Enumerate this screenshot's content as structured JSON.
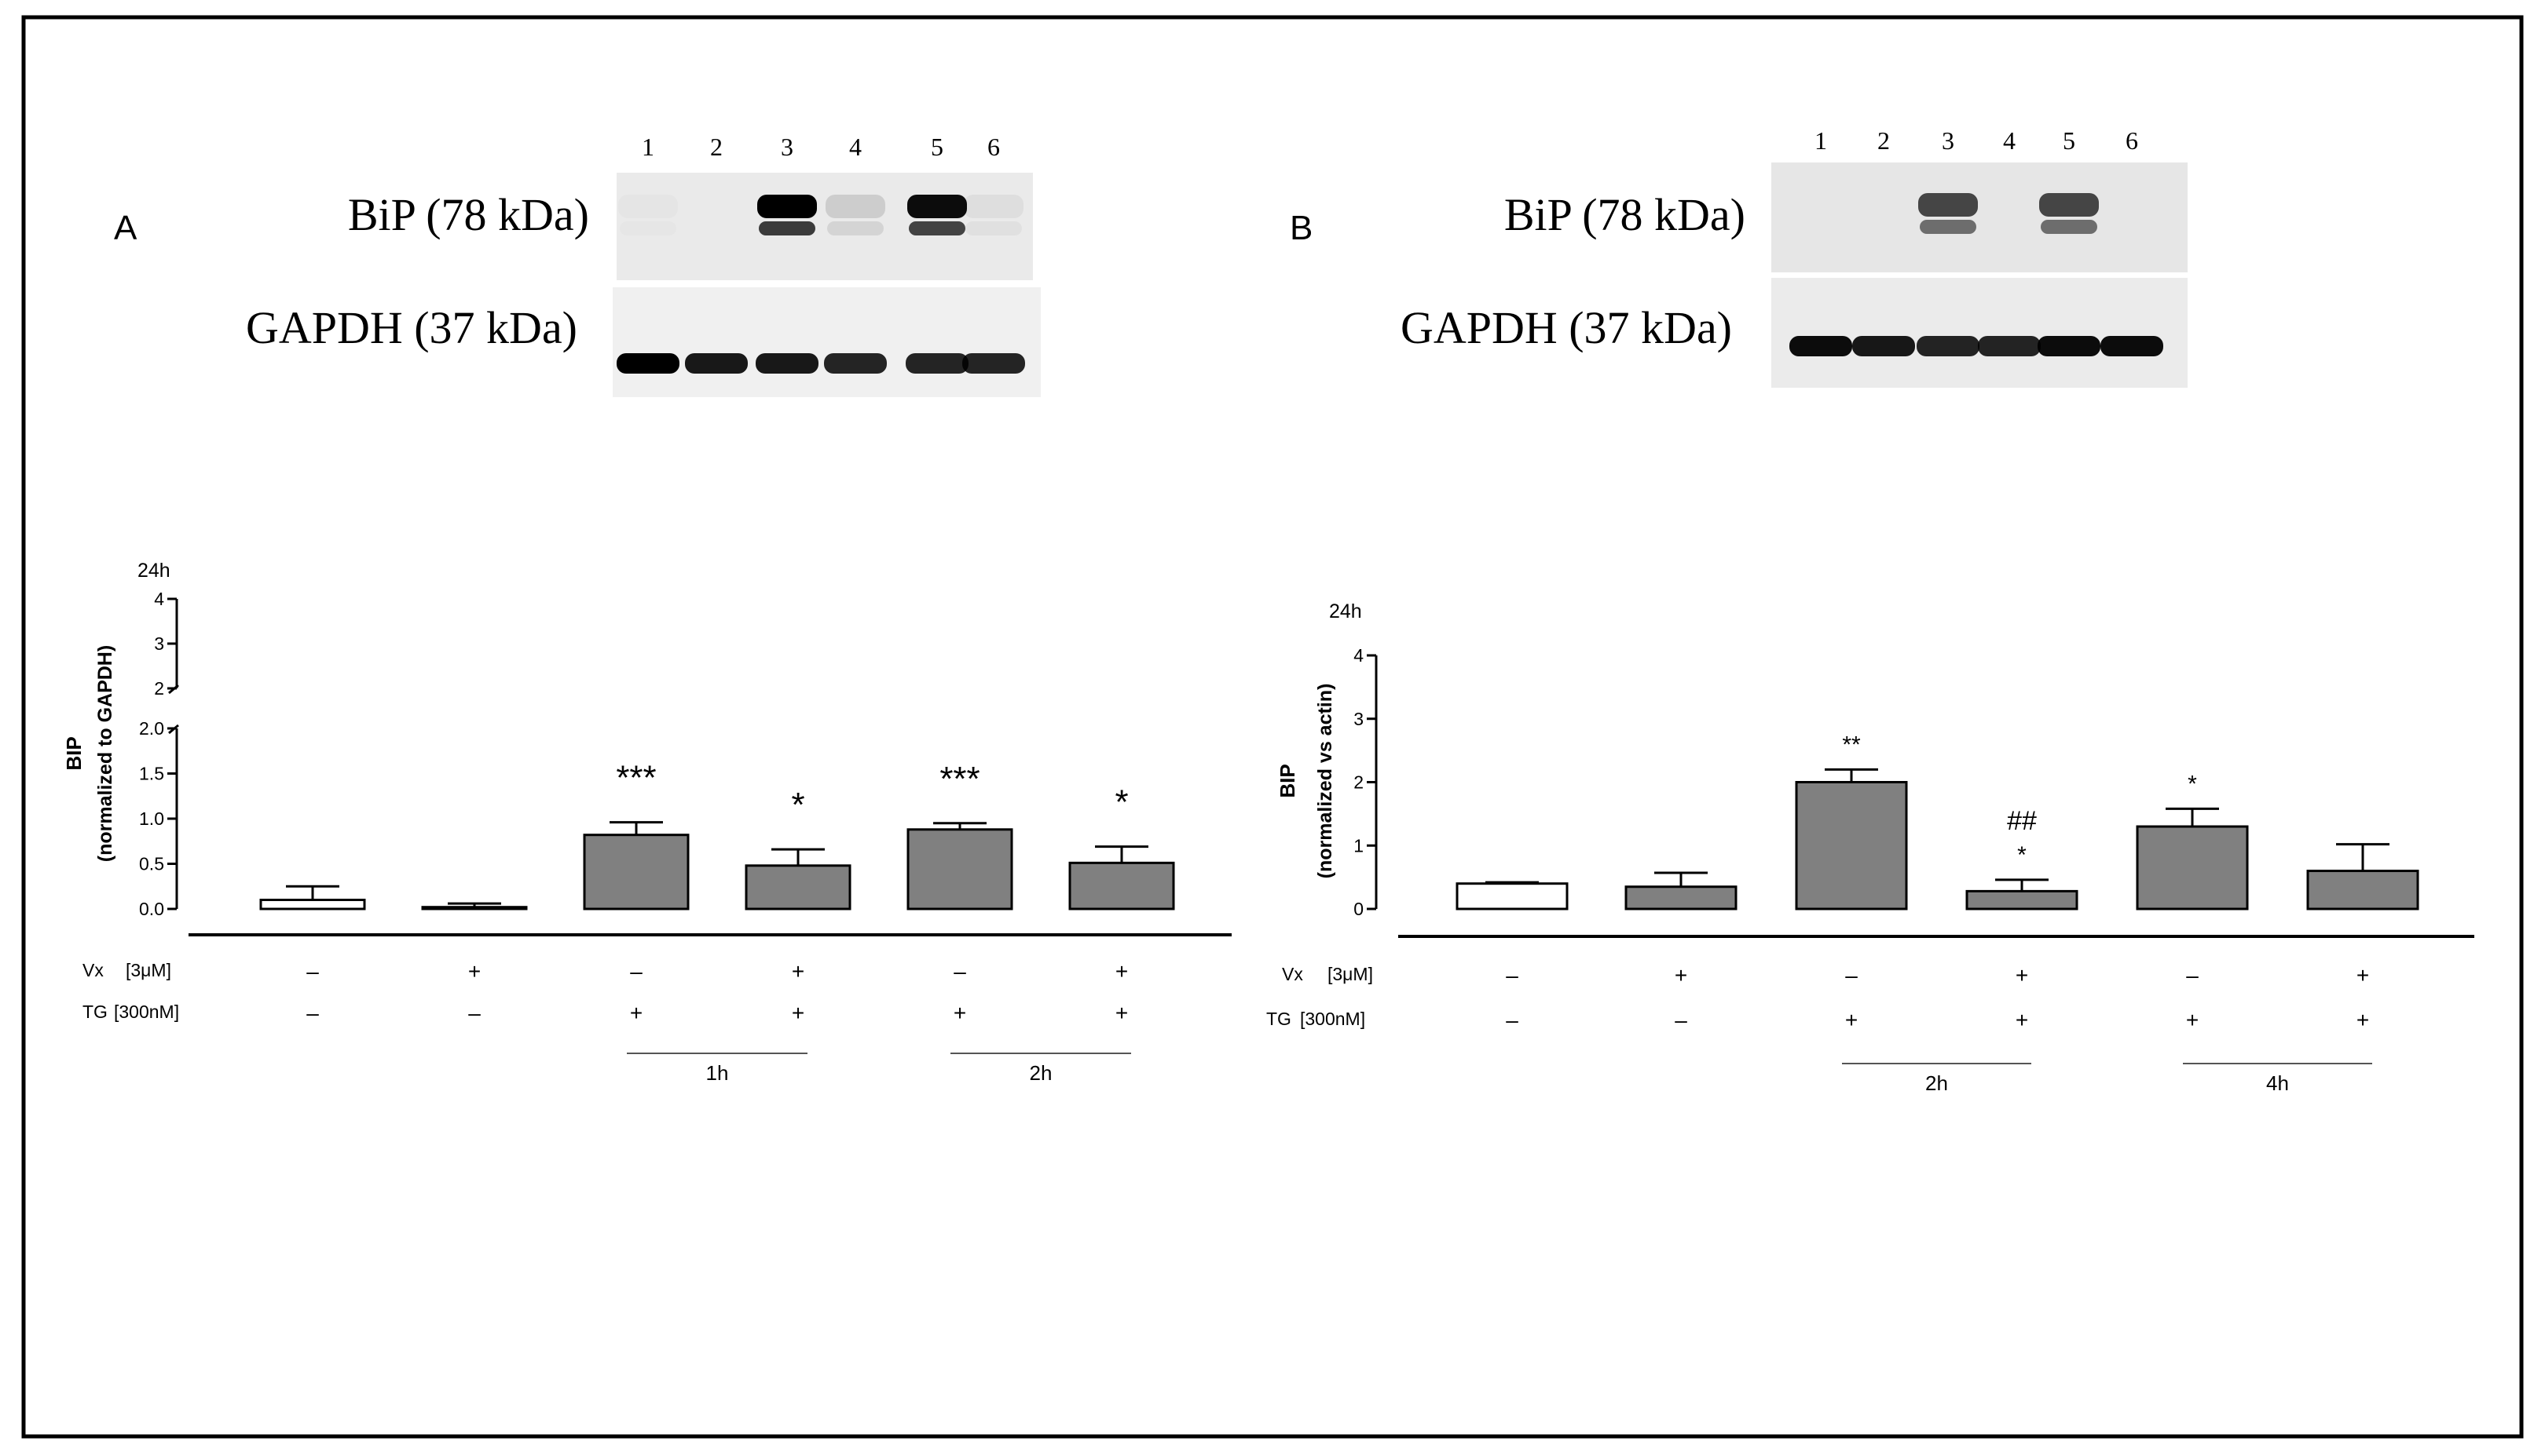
{
  "panels": [
    {
      "letter": "A",
      "blot": {
        "lane_numbers": [
          "1",
          "2",
          "3",
          "4",
          "5",
          "6"
        ],
        "row_labels": [
          "BiP (78 kDa)",
          "GAPDH (37 kDa)"
        ],
        "bip_intensity": [
          0.02,
          0.0,
          1.0,
          0.12,
          0.95,
          0.05
        ],
        "gapdh_intensity": [
          1.0,
          0.9,
          0.9,
          0.85,
          0.85,
          0.85
        ]
      },
      "timepoint": "24h",
      "conditions": {
        "vx_label": "Vx",
        "vx_conc": "[3μM]",
        "tg_label": "TG",
        "tg_conc": "[300nM]",
        "vx_signs": [
          "–",
          "+",
          "–",
          "+",
          "–",
          "+"
        ],
        "tg_signs": [
          "–",
          "–",
          "+",
          "+",
          "+",
          "+"
        ],
        "groups": [
          {
            "label": "1h",
            "bars": [
              2,
              3
            ]
          },
          {
            "label": "2h",
            "bars": [
              4,
              5
            ]
          }
        ]
      }
    },
    {
      "letter": "B",
      "blot": {
        "lane_numbers": [
          "1",
          "2",
          "3",
          "4",
          "5",
          "6"
        ],
        "row_labels": [
          "BiP (78 kDa)",
          "GAPDH (37 kDa)"
        ],
        "bip_intensity": [
          0.0,
          0.0,
          0.7,
          0.0,
          0.7,
          0.0
        ],
        "gapdh_intensity": [
          0.95,
          0.9,
          0.85,
          0.85,
          0.95,
          0.95
        ]
      },
      "timepoint": "24h",
      "conditions": {
        "vx_label": "Vx",
        "vx_conc": "[3μM]",
        "tg_label": "TG",
        "tg_conc": "[300nM]",
        "vx_signs": [
          "–",
          "+",
          "–",
          "+",
          "–",
          "+"
        ],
        "tg_signs": [
          "–",
          "–",
          "+",
          "+",
          "+",
          "+"
        ],
        "groups": [
          {
            "label": "2h",
            "bars": [
              2,
              3
            ]
          },
          {
            "label": "4h",
            "bars": [
              4,
              5
            ]
          }
        ]
      }
    }
  ],
  "chart_data": [
    {
      "type": "bar",
      "panel": "A",
      "ylabel": "BIP",
      "ylabel_sub": "(normalized to GAPDH)",
      "axis_break": true,
      "ylim_lower": [
        0,
        2.0
      ],
      "ylim_upper": [
        2,
        4
      ],
      "yticks_lower": [
        "0.0",
        "0.5",
        "1.0",
        "1.5",
        "2.0"
      ],
      "yticks_upper": [
        "2",
        "3",
        "4"
      ],
      "values": [
        0.1,
        0.02,
        0.82,
        0.48,
        0.88,
        0.51
      ],
      "errors": [
        0.15,
        0.04,
        0.14,
        0.18,
        0.07,
        0.18
      ],
      "fills": [
        "#ffffff",
        "#808080",
        "#808080",
        "#808080",
        "#808080",
        "#808080"
      ],
      "annotations": [
        "",
        "",
        "***",
        "*",
        "***",
        "*"
      ],
      "annotations_hash": [
        "",
        "",
        "",
        "",
        "",
        ""
      ]
    },
    {
      "type": "bar",
      "panel": "B",
      "ylabel": "BIP",
      "ylabel_sub": "(normalized vs actin)",
      "axis_break": false,
      "ylim": [
        0,
        4
      ],
      "yticks": [
        "0",
        "1",
        "2",
        "3",
        "4"
      ],
      "values": [
        0.4,
        0.35,
        2.0,
        0.28,
        1.3,
        0.6
      ],
      "errors": [
        0.02,
        0.22,
        0.2,
        0.18,
        0.28,
        0.42
      ],
      "fills": [
        "#ffffff",
        "#808080",
        "#808080",
        "#808080",
        "#808080",
        "#808080"
      ],
      "annotations": [
        "",
        "",
        "**",
        "*",
        "*",
        ""
      ],
      "annotations_hash": [
        "",
        "",
        "",
        "##",
        "",
        ""
      ]
    }
  ]
}
